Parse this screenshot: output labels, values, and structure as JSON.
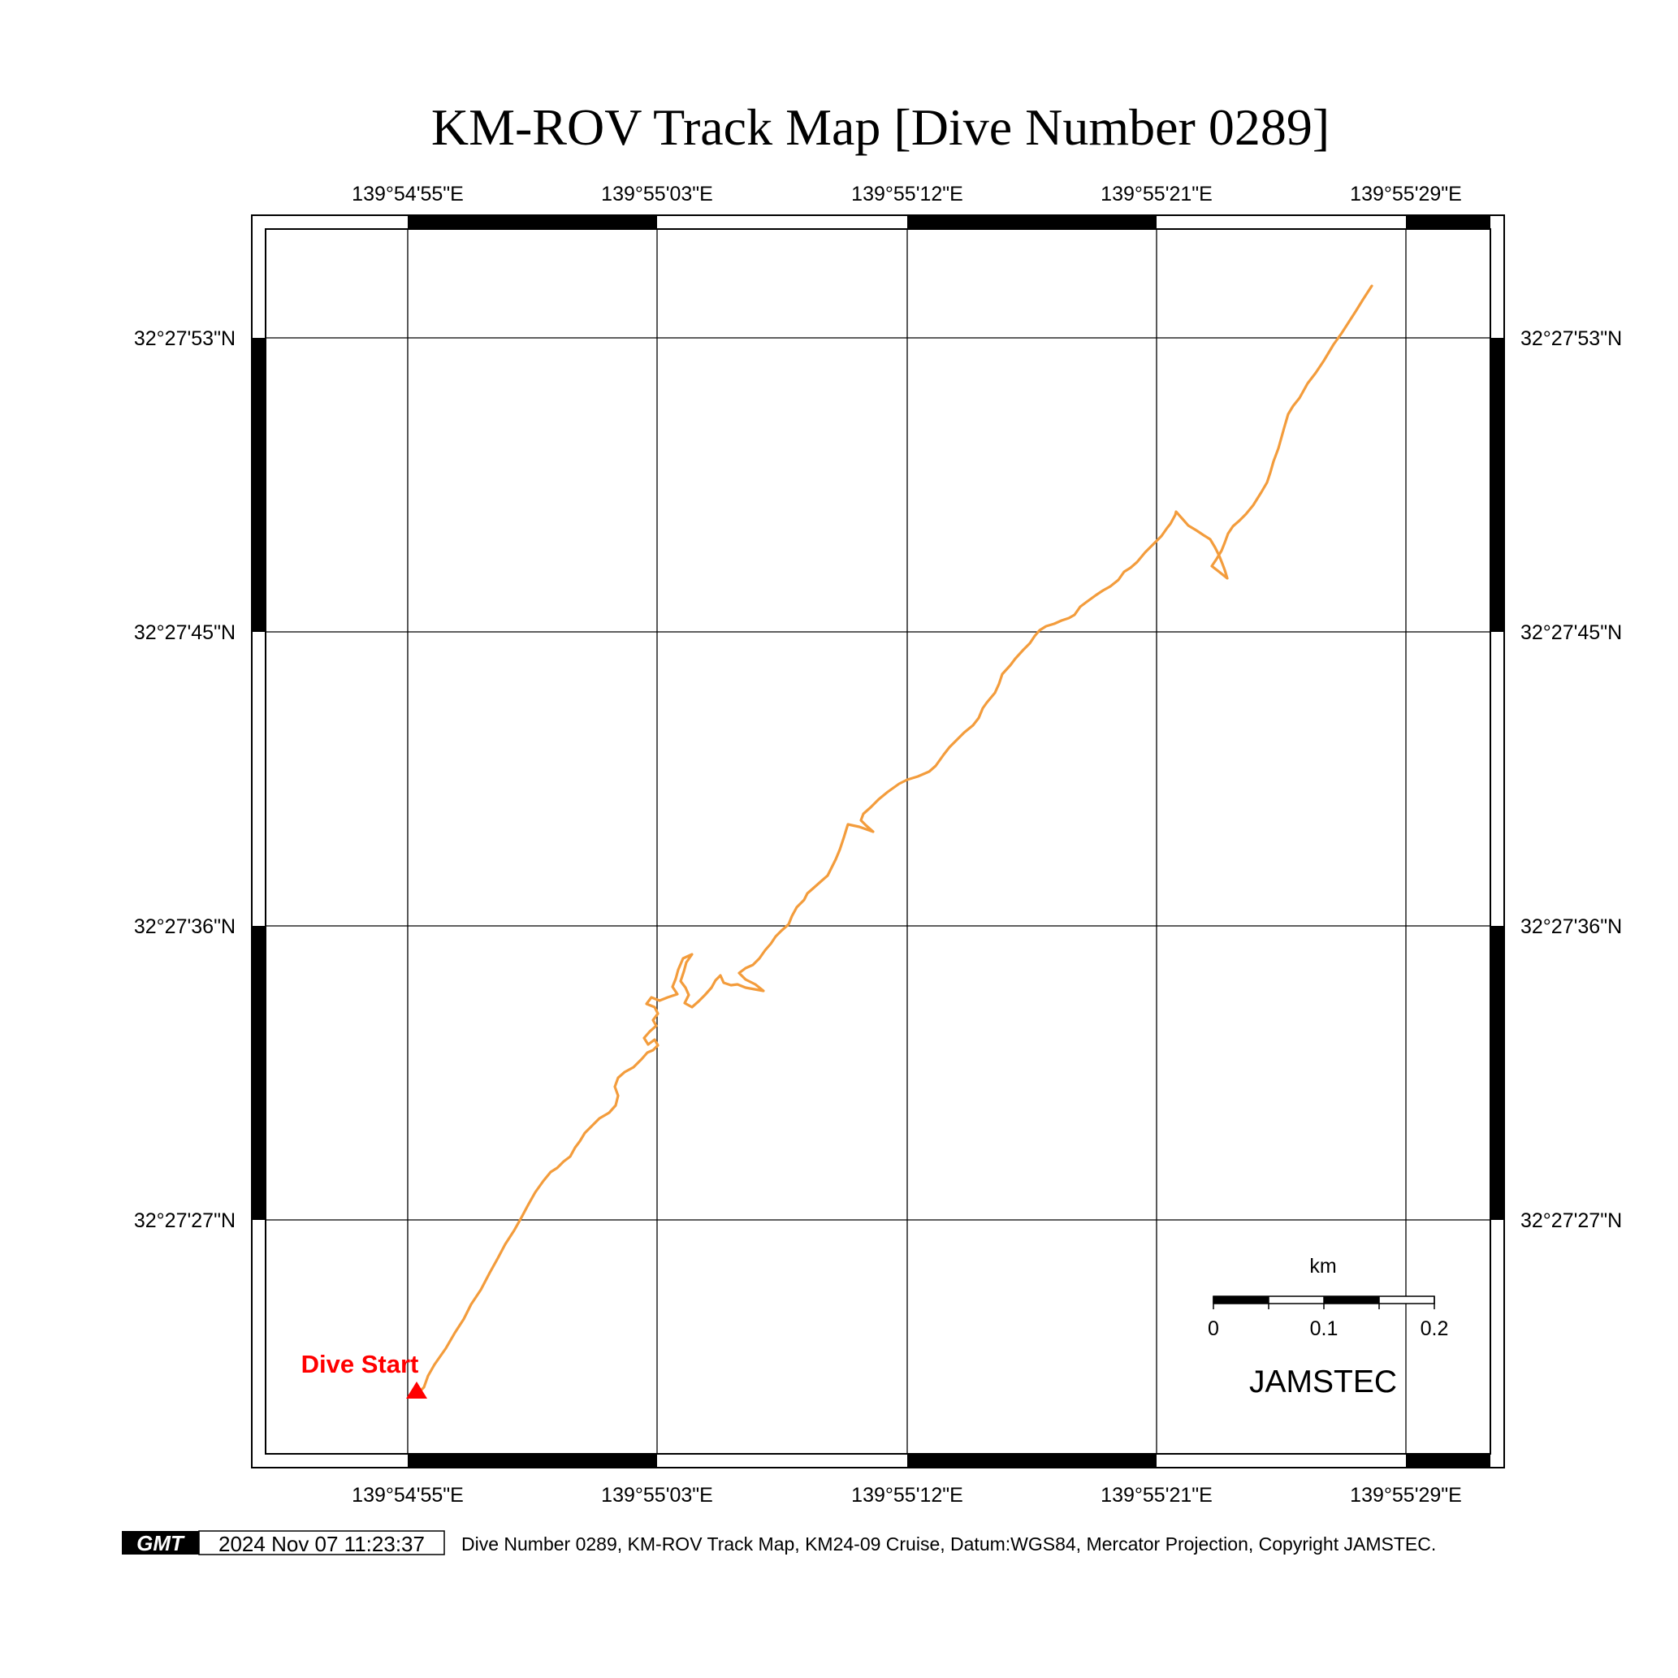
{
  "title": "KM-ROV Track Map [Dive Number 0289]",
  "axes": {
    "lon_labels": [
      "139°54'55\"E",
      "139°55'03\"E",
      "139°55'12\"E",
      "139°55'21\"E",
      "139°55'29\"E"
    ],
    "lat_labels": [
      "32°27'53\"N",
      "32°27'45\"N",
      "32°27'36\"N",
      "32°27'27\"N"
    ]
  },
  "track": {
    "color": "#f39c3c",
    "start_label": "Dive Start",
    "start_color": "#ff0000"
  },
  "scale_bar": {
    "unit": "km",
    "ticks": [
      "0",
      "0.1",
      "0.2"
    ]
  },
  "org_label": "JAMSTEC",
  "footer": {
    "logo": "GMT",
    "timestamp": "2024 Nov 07 11:23:37",
    "caption": "Dive Number 0289, KM-ROV Track Map, KM24-09 Cruise, Datum:WGS84, Mercator Projection, Copyright JAMSTEC."
  }
}
